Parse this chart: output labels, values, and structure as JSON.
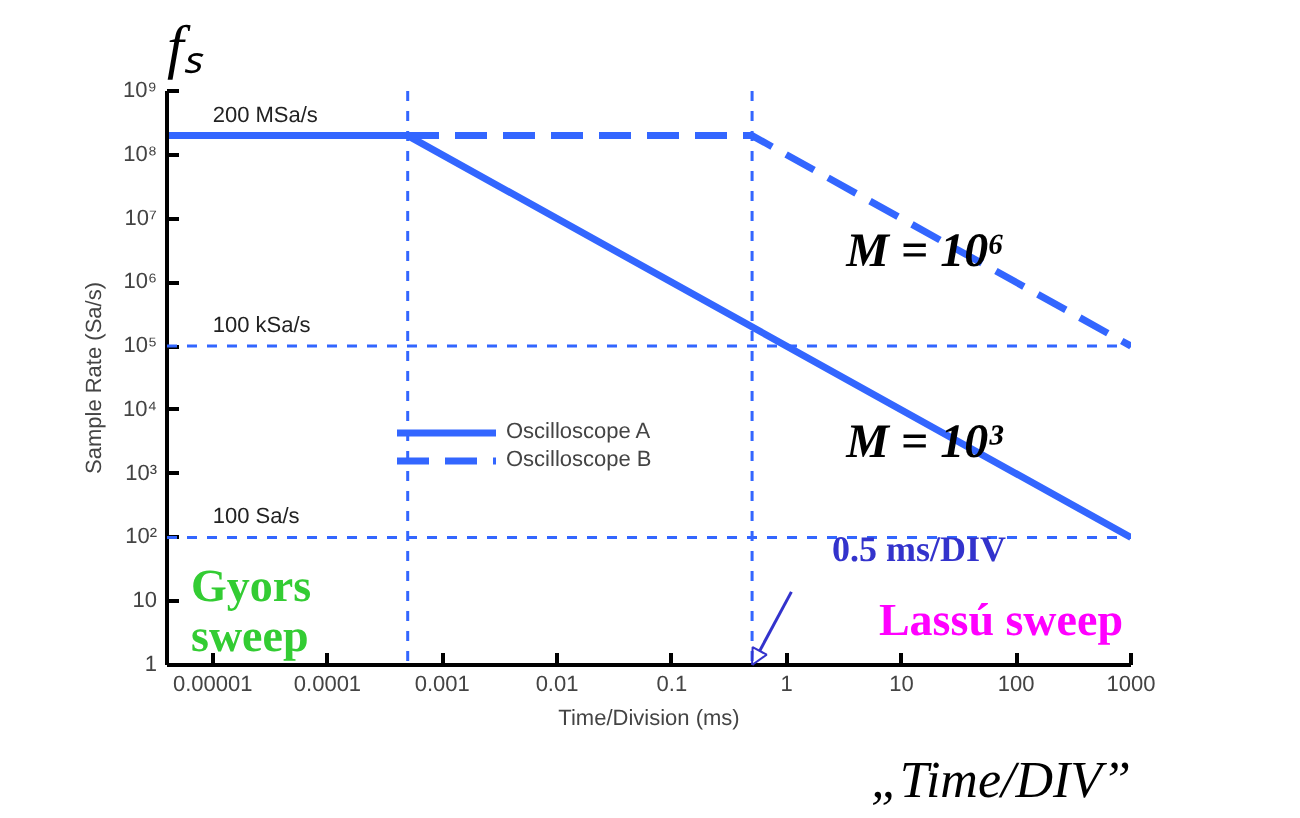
{
  "chart_data": {
    "type": "line",
    "xlabel": "Time/Division (ms)",
    "ylabel": "Sample Rate (Sa/s)",
    "log": "xy",
    "xlim": [
      4e-06,
      1000
    ],
    "ylim": [
      1,
      1000000000
    ],
    "xticks": [
      {
        "value": 1e-05,
        "label": "0.00001"
      },
      {
        "value": 0.0001,
        "label": "0.0001"
      },
      0.001,
      0.01,
      0.1,
      1,
      10,
      100,
      1000
    ],
    "yticks": [
      1,
      10,
      {
        "value": 100,
        "label": "10²"
      },
      {
        "value": 1000,
        "label": "10³"
      },
      {
        "value": 10000,
        "label": "10⁴"
      },
      {
        "value": 100000,
        "label": "10⁵"
      },
      {
        "value": 1000000,
        "label": "10⁶"
      },
      {
        "value": 10000000,
        "label": "10⁷"
      },
      {
        "value": 100000000,
        "label": "10⁸"
      },
      {
        "value": 1000000000,
        "label": "10⁹"
      }
    ],
    "grid": false,
    "legend": "center",
    "marker": "none",
    "series": [
      {
        "name": "Oscilloscope A",
        "color": "#3366ff",
        "line_style": "solid",
        "x": [
          4e-06,
          0.0005,
          1000
        ],
        "values": [
          200000000,
          200000000,
          100
        ]
      },
      {
        "name": "Oscilloscope B",
        "color": "#3366ff",
        "line_style": "dashed",
        "x": [
          4e-06,
          0.5,
          1000
        ],
        "values": [
          200000000,
          200000000,
          100000
        ]
      }
    ],
    "ref_lines": [
      {
        "axis": "x",
        "value": 0.0005,
        "label": null,
        "color": "#3366ff",
        "line_style": "dashed"
      },
      {
        "axis": "x",
        "value": 0.5,
        "label": null,
        "color": "#3366ff",
        "line_style": "dashed"
      },
      {
        "axis": "y",
        "value": 100000,
        "label": "100 kSa/s",
        "color": "#3366ff",
        "line_style": "dashed"
      },
      {
        "axis": "y",
        "value": 100,
        "label": "100 Sa/s",
        "color": "#3366ff",
        "line_style": "dashed"
      }
    ],
    "annotations": [
      {
        "text": "200 MSa/s",
        "x": 1e-05,
        "y": 200000000
      },
      {
        "text": "M = 10⁶",
        "x": 30,
        "y": 3000000
      },
      {
        "text": "M = 10³",
        "x": 30,
        "y": 3000
      },
      {
        "text": "0.5 ms/DIV",
        "x": 0.5,
        "y": 1
      },
      "fₛ",
      "Gyors sweep",
      "Lassú sweep",
      "„Time/DIV”"
    ]
  }
}
